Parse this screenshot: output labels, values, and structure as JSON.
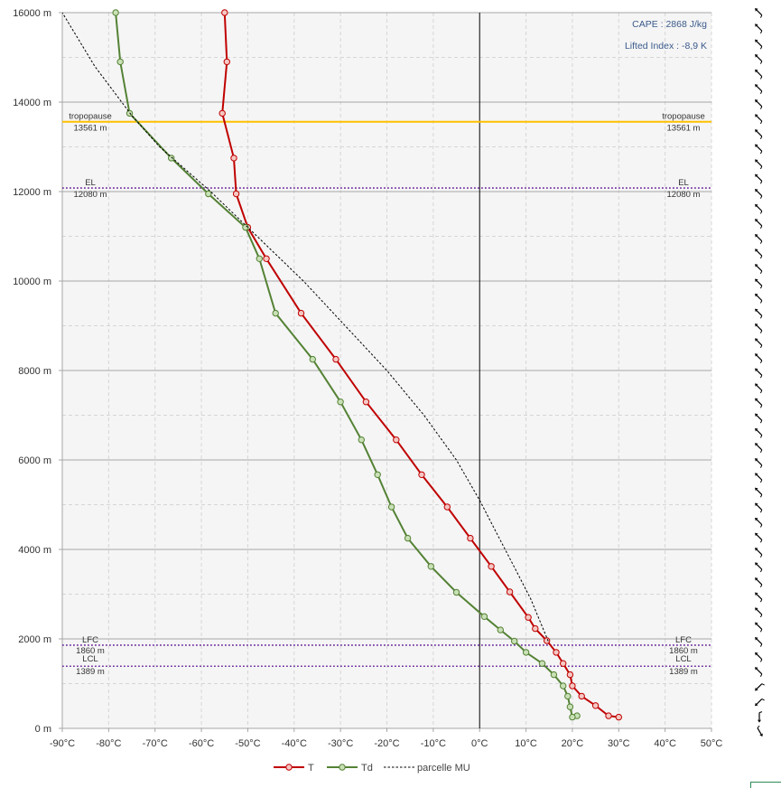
{
  "chart_data": {
    "type": "line",
    "xlim": [
      -90,
      50
    ],
    "ylim": [
      0,
      16000
    ],
    "x_ticks": [
      -90,
      -80,
      -70,
      -60,
      -50,
      -40,
      -30,
      -20,
      -10,
      0,
      10,
      20,
      30,
      40,
      50
    ],
    "y_ticks": [
      0,
      2000,
      4000,
      6000,
      8000,
      10000,
      12000,
      14000,
      16000
    ],
    "x_tick_labels": [
      "-90°C",
      "-80°C",
      "-70°C",
      "-60°C",
      "-50°C",
      "-40°C",
      "-30°C",
      "-20°C",
      "-10°C",
      "0°C",
      "10°C",
      "20°C",
      "30°C",
      "40°C",
      "50°C"
    ],
    "y_tick_labels": [
      "0 m",
      "2000 m",
      "4000 m",
      "6000 m",
      "8000 m",
      "10000 m",
      "12000 m",
      "14000 m",
      "16000 m"
    ],
    "grid": true,
    "legend_position": "bottom",
    "colors": {
      "T": "#c00000",
      "Td": "#548235",
      "parcel": "#000000",
      "tropopause": "#ffc000",
      "levels": "#7030a0",
      "info": "#3a5a8c"
    },
    "series": [
      {
        "name": "T",
        "style": "solid",
        "markers": true,
        "points": [
          [
            30,
            250
          ],
          [
            27.8,
            280
          ],
          [
            25,
            510
          ],
          [
            22,
            720
          ],
          [
            20,
            950
          ],
          [
            19.5,
            1200
          ],
          [
            18,
            1450
          ],
          [
            16.5,
            1700
          ],
          [
            14.5,
            1960
          ],
          [
            12,
            2230
          ],
          [
            10.5,
            2480
          ],
          [
            6.5,
            3050
          ],
          [
            2.5,
            3620
          ],
          [
            -2,
            4250
          ],
          [
            -7,
            4950
          ],
          [
            -12.5,
            5670
          ],
          [
            -18,
            6450
          ],
          [
            -24.5,
            7300
          ],
          [
            -31,
            8250
          ],
          [
            -38.5,
            9280
          ],
          [
            -46,
            10500
          ],
          [
            -50,
            11200
          ],
          [
            -52.5,
            11950
          ],
          [
            -53,
            12750
          ],
          [
            -55.5,
            13750
          ],
          [
            -54.5,
            14900
          ],
          [
            -55,
            16000
          ]
        ]
      },
      {
        "name": "Td",
        "style": "solid",
        "markers": true,
        "points": [
          [
            21,
            280
          ],
          [
            20,
            250
          ],
          [
            19.5,
            480
          ],
          [
            19,
            720
          ],
          [
            18,
            950
          ],
          [
            16,
            1200
          ],
          [
            13.5,
            1450
          ],
          [
            10,
            1700
          ],
          [
            7.5,
            1950
          ],
          [
            4.5,
            2200
          ],
          [
            1,
            2500
          ],
          [
            -5,
            3040
          ],
          [
            -10.5,
            3620
          ],
          [
            -15.5,
            4250
          ],
          [
            -19,
            4950
          ],
          [
            -22,
            5670
          ],
          [
            -25.5,
            6450
          ],
          [
            -30,
            7300
          ],
          [
            -36,
            8250
          ],
          [
            -44,
            9280
          ],
          [
            -47.5,
            10500
          ],
          [
            -50.5,
            11200
          ],
          [
            -58.5,
            11950
          ],
          [
            -66.5,
            12750
          ],
          [
            -75.5,
            13750
          ],
          [
            -77.5,
            14900
          ],
          [
            -78.5,
            16000
          ]
        ]
      },
      {
        "name": "parcelle MU",
        "style": "dashed",
        "markers": false,
        "points": [
          [
            14.8,
            1950
          ],
          [
            11,
            2900
          ],
          [
            7,
            3700
          ],
          [
            3,
            4500
          ],
          [
            0,
            5100
          ],
          [
            -5,
            6000
          ],
          [
            -12,
            7000
          ],
          [
            -20,
            8000
          ],
          [
            -29,
            9000
          ],
          [
            -38,
            10000
          ],
          [
            -48,
            11000
          ],
          [
            -58,
            12000
          ],
          [
            -69,
            13000
          ],
          [
            -75,
            13700
          ],
          [
            -83,
            14800
          ],
          [
            -90,
            16000
          ]
        ]
      }
    ],
    "levels": [
      {
        "name": "tropopause",
        "value": "13561 m",
        "height": 13561,
        "style": "solid"
      },
      {
        "name": "EL",
        "value": "12080 m",
        "height": 12080,
        "style": "dotted"
      },
      {
        "name": "LFC",
        "value": "1860 m",
        "height": 1860,
        "style": "dotted"
      },
      {
        "name": "LCL",
        "value": "1389 m",
        "height": 1389,
        "style": "dotted"
      }
    ],
    "info": [
      "CAPE : 2868 J/kg",
      "Lifted Index : -8,9 K"
    ],
    "wind_barbs": {
      "heights": [
        16000,
        15650,
        15300,
        14970,
        14630,
        14300,
        13960,
        13630,
        13290,
        12960,
        12620,
        12290,
        11960,
        11620,
        11290,
        10950,
        10620,
        10280,
        9950,
        9620,
        9280,
        8950,
        8620,
        8280,
        7950,
        7610,
        7280,
        6940,
        6610,
        6280,
        5940,
        5610,
        5280,
        4940,
        4610,
        4270,
        3940,
        3610,
        3270,
        2940,
        2600,
        2270,
        1940,
        1600,
        1270,
        940,
        600,
        270,
        -60
      ],
      "directions": [
        225,
        225,
        225,
        225,
        225,
        225,
        225,
        225,
        225,
        225,
        225,
        225,
        225,
        225,
        225,
        225,
        225,
        225,
        225,
        225,
        225,
        225,
        225,
        225,
        225,
        225,
        225,
        225,
        225,
        225,
        225,
        225,
        225,
        225,
        225,
        225,
        225,
        225,
        225,
        225,
        225,
        225,
        225,
        225,
        225,
        135,
        135,
        90,
        60
      ]
    }
  }
}
